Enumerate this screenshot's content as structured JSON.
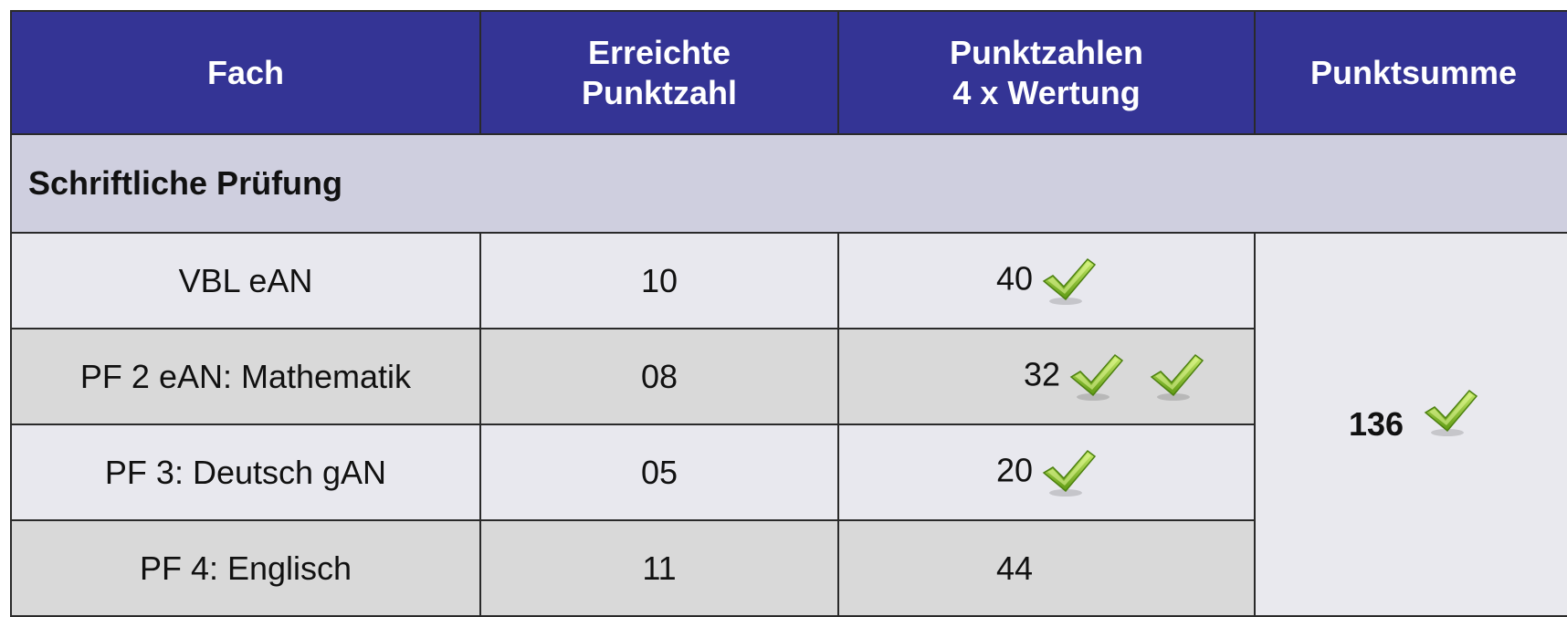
{
  "table": {
    "headers": [
      "Fach",
      [
        "Erreichte",
        "Punktzahl"
      ],
      [
        "Punktzahlen",
        "4 x Wertung"
      ],
      "Punktsumme"
    ],
    "section": "Schriftliche Prüfung",
    "rows": [
      [
        "VBL eAN",
        "10",
        "40"
      ],
      [
        "PF 2 eAN: Mathematik",
        "08",
        "32"
      ],
      [
        "PF 3: Deutsch gAN",
        "05",
        "20"
      ],
      [
        "PF 4: Englisch",
        "11",
        "44"
      ]
    ],
    "sum": "136"
  }
}
